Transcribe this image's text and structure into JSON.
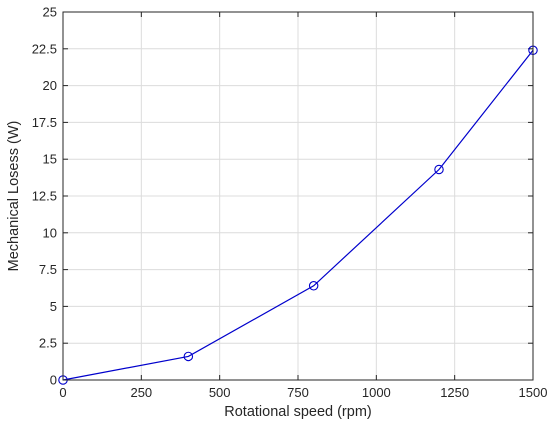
{
  "chart_data": {
    "type": "line",
    "xlabel": "Rotational speed (rpm)",
    "ylabel": "Mechanical Losess (W)",
    "xlim": [
      0,
      1500
    ],
    "ylim": [
      0,
      25
    ],
    "x_ticks": [
      "0",
      "250",
      "500",
      "750",
      "1000",
      "1250",
      "1500"
    ],
    "y_ticks": [
      "0",
      "2.5",
      "5",
      "7.5",
      "10",
      "12.5",
      "15",
      "17.5",
      "20",
      "22.5",
      "25"
    ],
    "grid": true,
    "series": [
      {
        "x": [
          0,
          400,
          800,
          1200,
          1500
        ],
        "y": [
          0,
          1.6,
          6.4,
          14.3,
          22.4
        ],
        "color": "#0000cc",
        "marker": "circle"
      }
    ]
  }
}
